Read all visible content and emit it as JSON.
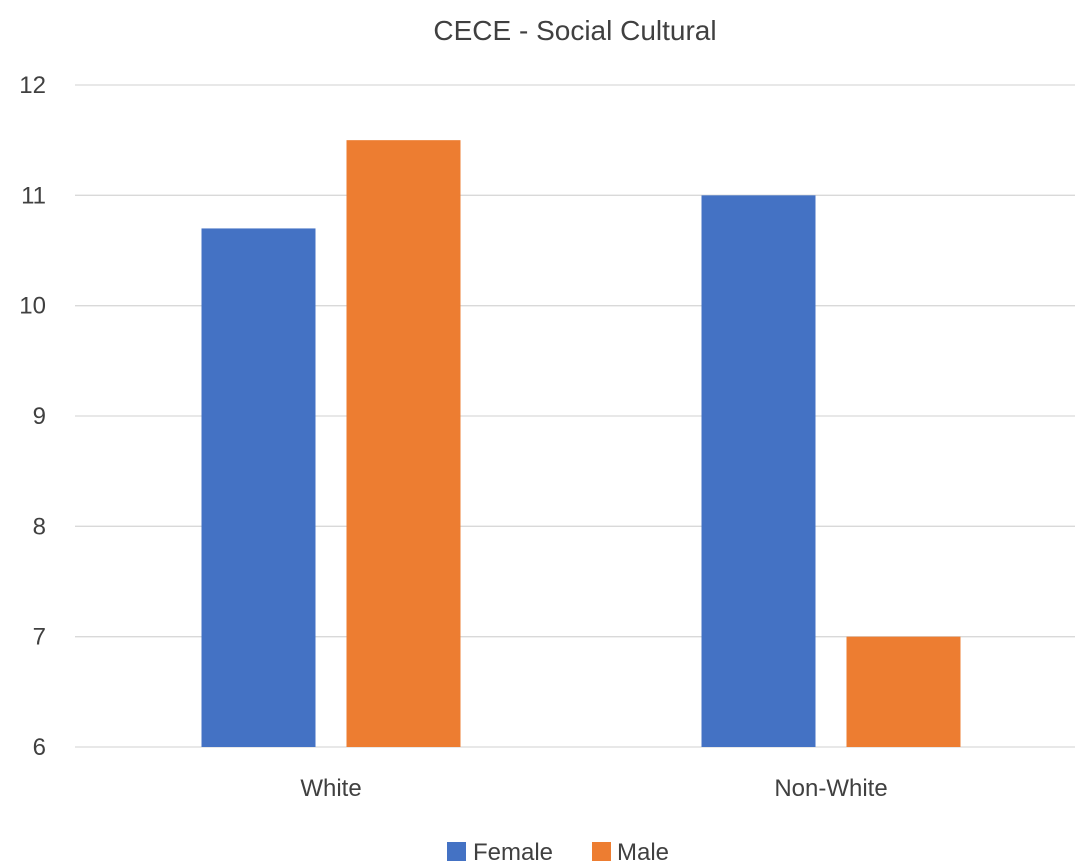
{
  "chart_data": {
    "type": "bar",
    "title": "CECE - Social Cultural",
    "xlabel": "",
    "ylabel": "",
    "categories": [
      "White",
      "Non-White"
    ],
    "series": [
      {
        "name": "Female",
        "values": [
          10.7,
          11.0
        ],
        "color": "#4472c4"
      },
      {
        "name": "Male",
        "values": [
          11.5,
          7.0
        ],
        "color": "#ed7d31"
      }
    ],
    "ylim": [
      6,
      12
    ],
    "yticks": [
      "6",
      "7",
      "8",
      "9",
      "10",
      "11",
      "12"
    ],
    "grid": true,
    "legend_position": "bottom"
  }
}
